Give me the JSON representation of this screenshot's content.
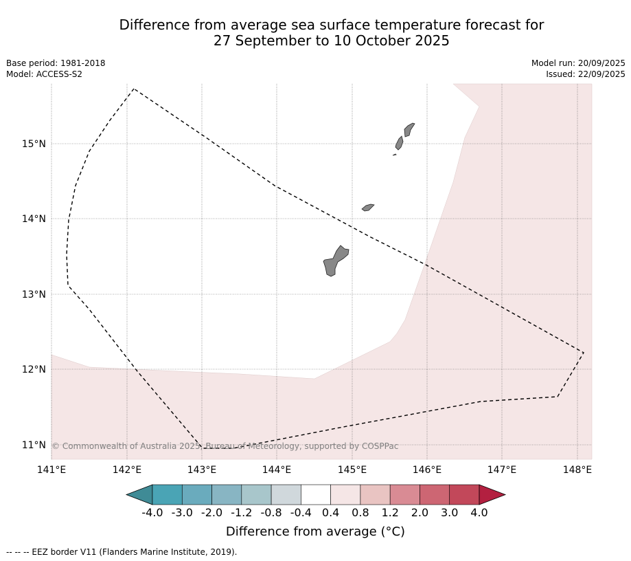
{
  "title": {
    "line1": "Difference from average sea surface temperature forecast for",
    "line2": "27 September to 10 October 2025"
  },
  "meta": {
    "base_period": "Base period: 1981-2018",
    "model": "Model: ACCESS-S2",
    "model_run": "Model run: 20/09/2025",
    "issued": "Issued: 22/09/2025"
  },
  "map": {
    "lon_labels": [
      "141°E",
      "142°E",
      "143°E",
      "144°E",
      "145°E",
      "146°E",
      "147°E",
      "148°E"
    ],
    "lat_labels": [
      "15°N",
      "14°N",
      "13°N",
      "12°N",
      "11°N"
    ],
    "copyright": "© Commonwealth of Australia 2025, Bureau of Meteorology, supported by COSPPac",
    "land_color": "#888888",
    "anomaly_fill_color": "#f5e6e6"
  },
  "colorbar": {
    "colors": [
      "#3f8b96",
      "#4aa4b5",
      "#6aabbd",
      "#88b5c3",
      "#a8c6cb",
      "#d0d8dc",
      "#ffffff",
      "#f5e6e6",
      "#e9c4c2",
      "#d98b94",
      "#cd6673",
      "#c2485a",
      "#b32040"
    ],
    "tick_labels": [
      "-4.0",
      "-3.0",
      "-2.0",
      "-1.2",
      "-0.8",
      "-0.4",
      "0.4",
      "0.8",
      "1.2",
      "2.0",
      "3.0",
      "4.0"
    ],
    "axis_label": "Difference from average (°C)"
  },
  "legend": {
    "eez": "--  --  -- EEZ border V11 (Flanders Marine Institute, 2019)."
  }
}
